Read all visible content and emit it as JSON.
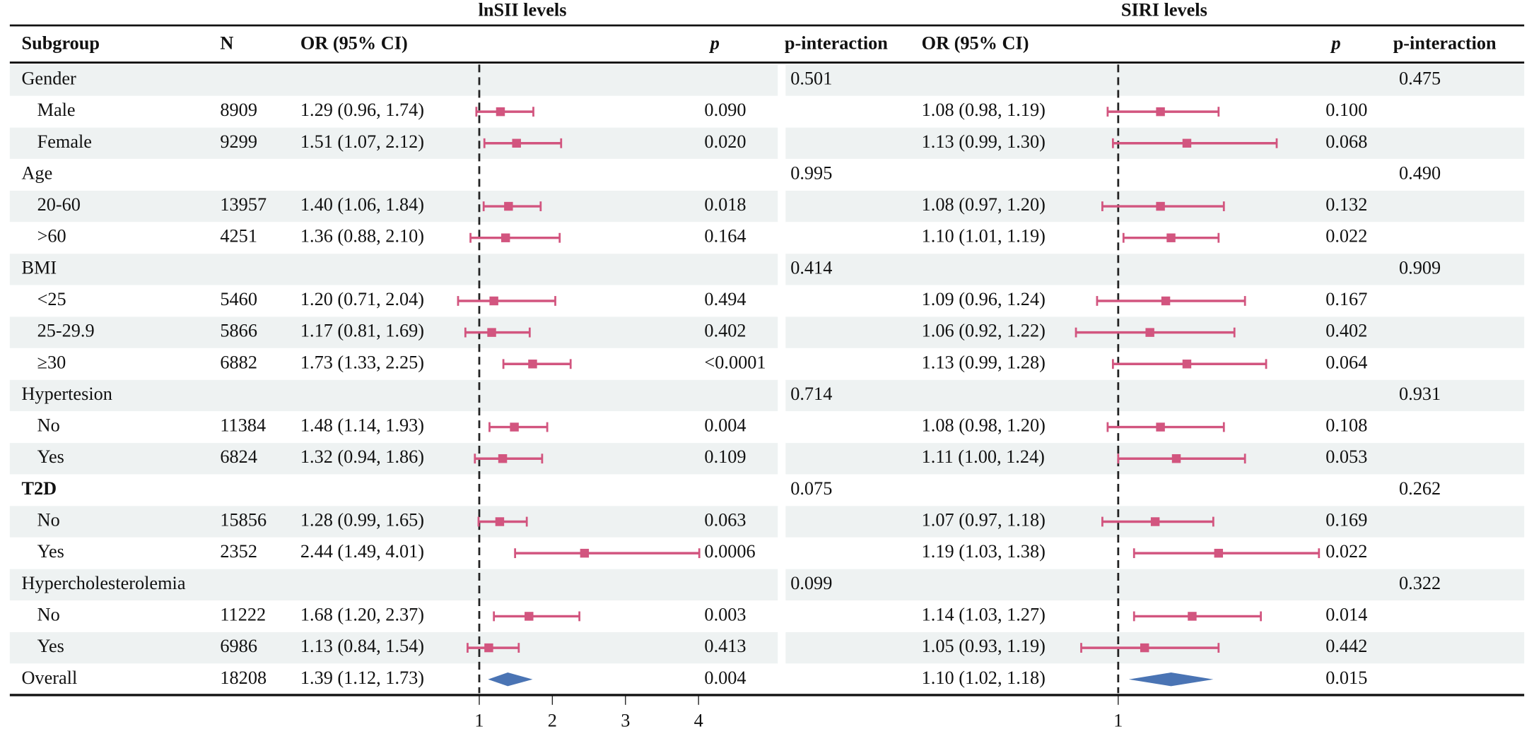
{
  "chart_data": {
    "type": "forest",
    "columns": [
      "Subgroup",
      "N",
      "OR (95% CI)",
      "p",
      "p-interaction"
    ],
    "panels": [
      {
        "title": "lnSII levels",
        "xlim": [
          0.6,
          4.1
        ],
        "xticks": [
          1,
          2,
          3,
          4
        ],
        "color": "#d2557f",
        "summary_color": "#4a74b4"
      },
      {
        "title": "SIRI levels",
        "xlim": [
          0.9,
          1.4
        ],
        "xticks": [
          1
        ],
        "color": "#d2557f",
        "summary_color": "#4a74b4"
      }
    ],
    "rows": [
      {
        "label": "Gender",
        "p_interaction": [
          "0.501",
          "0.475"
        ]
      },
      {
        "label": "Male",
        "n": 8909,
        "results": [
          {
            "or": 1.29,
            "lo": 0.96,
            "hi": 1.74,
            "label": "1.29 (0.96, 1.74)",
            "p": "0.090"
          },
          {
            "or": 1.08,
            "lo": 0.98,
            "hi": 1.19,
            "label": "1.08 (0.98, 1.19)",
            "p": "0.100"
          }
        ]
      },
      {
        "label": "Female",
        "n": 9299,
        "results": [
          {
            "or": 1.51,
            "lo": 1.07,
            "hi": 2.12,
            "label": "1.51 (1.07, 2.12)",
            "p": "0.020"
          },
          {
            "or": 1.13,
            "lo": 0.99,
            "hi": 1.3,
            "label": "1.13 (0.99, 1.30)",
            "p": "0.068"
          }
        ]
      },
      {
        "label": "Age",
        "p_interaction": [
          "0.995",
          "0.490"
        ]
      },
      {
        "label": "20-60",
        "n": 13957,
        "results": [
          {
            "or": 1.4,
            "lo": 1.06,
            "hi": 1.84,
            "label": "1.40 (1.06, 1.84)",
            "p": "0.018"
          },
          {
            "or": 1.08,
            "lo": 0.97,
            "hi": 1.2,
            "label": "1.08 (0.97, 1.20)",
            "p": "0.132"
          }
        ]
      },
      {
        "label": ">60",
        "n": 4251,
        "results": [
          {
            "or": 1.36,
            "lo": 0.88,
            "hi": 2.1,
            "label": "1.36 (0.88, 2.10)",
            "p": "0.164"
          },
          {
            "or": 1.1,
            "lo": 1.01,
            "hi": 1.19,
            "label": "1.10 (1.01, 1.19)",
            "p": "0.022"
          }
        ]
      },
      {
        "label": "BMI",
        "p_interaction": [
          "0.414",
          "0.909"
        ]
      },
      {
        "label": "<25",
        "n": 5460,
        "results": [
          {
            "or": 1.2,
            "lo": 0.71,
            "hi": 2.04,
            "label": "1.20 (0.71, 2.04)",
            "p": "0.494"
          },
          {
            "or": 1.09,
            "lo": 0.96,
            "hi": 1.24,
            "label": "1.09 (0.96, 1.24)",
            "p": "0.167"
          }
        ]
      },
      {
        "label": "25-29.9",
        "n": 5866,
        "results": [
          {
            "or": 1.17,
            "lo": 0.81,
            "hi": 1.69,
            "label": "1.17 (0.81, 1.69)",
            "p": "0.402"
          },
          {
            "or": 1.06,
            "lo": 0.92,
            "hi": 1.22,
            "label": "1.06 (0.92, 1.22)",
            "p": "0.402"
          }
        ]
      },
      {
        "label": "≥30",
        "n": 6882,
        "results": [
          {
            "or": 1.73,
            "lo": 1.33,
            "hi": 2.25,
            "label": "1.73 (1.33, 2.25)",
            "p": "<0.0001"
          },
          {
            "or": 1.13,
            "lo": 0.99,
            "hi": 1.28,
            "label": "1.13 (0.99, 1.28)",
            "p": "0.064"
          }
        ]
      },
      {
        "label": "Hypertesion",
        "p_interaction": [
          "0.714",
          "0.931"
        ]
      },
      {
        "label": "No",
        "n": 11384,
        "results": [
          {
            "or": 1.48,
            "lo": 1.14,
            "hi": 1.93,
            "label": "1.48 (1.14, 1.93)",
            "p": "0.004"
          },
          {
            "or": 1.08,
            "lo": 0.98,
            "hi": 1.2,
            "label": "1.08 (0.98, 1.20)",
            "p": "0.108"
          }
        ]
      },
      {
        "label": "Yes",
        "n": 6824,
        "results": [
          {
            "or": 1.32,
            "lo": 0.94,
            "hi": 1.86,
            "label": "1.32 (0.94, 1.86)",
            "p": "0.109"
          },
          {
            "or": 1.11,
            "lo": 1.0,
            "hi": 1.24,
            "label": "1.11 (1.00, 1.24)",
            "p": "0.053"
          }
        ]
      },
      {
        "label": "T2D",
        "bold": true,
        "p_interaction": [
          "0.075",
          "0.262"
        ]
      },
      {
        "label": "No",
        "n": 15856,
        "results": [
          {
            "or": 1.28,
            "lo": 0.99,
            "hi": 1.65,
            "label": "1.28 (0.99, 1.65)",
            "p": "0.063"
          },
          {
            "or": 1.07,
            "lo": 0.97,
            "hi": 1.18,
            "label": "1.07 (0.97, 1.18)",
            "p": "0.169"
          }
        ]
      },
      {
        "label": "Yes",
        "n": 2352,
        "results": [
          {
            "or": 2.44,
            "lo": 1.49,
            "hi": 4.01,
            "label": "2.44 (1.49, 4.01)",
            "p": "0.0006"
          },
          {
            "or": 1.19,
            "lo": 1.03,
            "hi": 1.38,
            "label": "1.19 (1.03, 1.38)",
            "p": "0.022"
          }
        ]
      },
      {
        "label": "Hypercholesterolemia",
        "p_interaction": [
          "0.099",
          "0.322"
        ]
      },
      {
        "label": "No",
        "n": 11222,
        "results": [
          {
            "or": 1.68,
            "lo": 1.2,
            "hi": 2.37,
            "label": "1.68 (1.20, 2.37)",
            "p": "0.003"
          },
          {
            "or": 1.14,
            "lo": 1.03,
            "hi": 1.27,
            "label": "1.14 (1.03, 1.27)",
            "p": "0.014"
          }
        ]
      },
      {
        "label": "Yes",
        "n": 6986,
        "results": [
          {
            "or": 1.13,
            "lo": 0.84,
            "hi": 1.54,
            "label": "1.13 (0.84, 1.54)",
            "p": "0.413"
          },
          {
            "or": 1.05,
            "lo": 0.93,
            "hi": 1.19,
            "label": "1.05 (0.93, 1.19)",
            "p": "0.442"
          }
        ]
      },
      {
        "label": "Overall",
        "summary": true,
        "n": 18208,
        "results": [
          {
            "or": 1.39,
            "lo": 1.12,
            "hi": 1.73,
            "label": "1.39 (1.12, 1.73)",
            "p": "0.004"
          },
          {
            "or": 1.1,
            "lo": 1.02,
            "hi": 1.18,
            "label": "1.10 (1.02, 1.18)",
            "p": "0.015"
          }
        ]
      }
    ]
  }
}
